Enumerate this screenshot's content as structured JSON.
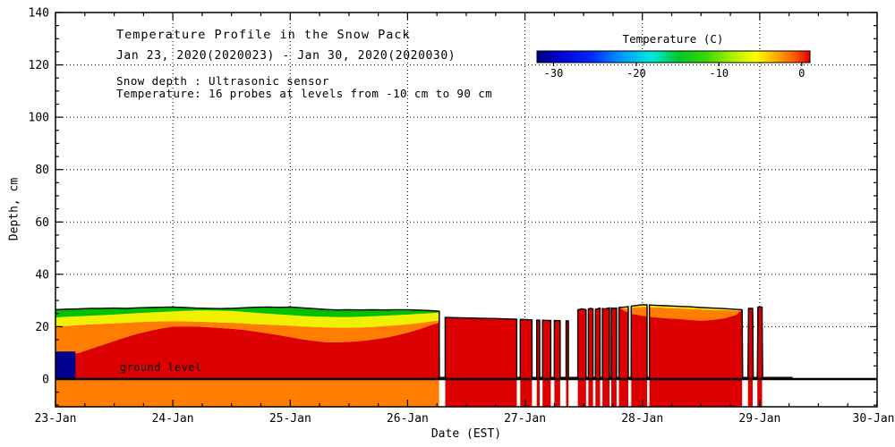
{
  "header": {
    "title": "Temperature Profile in the Snow Pack",
    "subtitle": "Jan 23, 2020(2020023) - Jan 30, 2020(2020030)",
    "note1": "Snow depth : Ultrasonic sensor",
    "note2": "Temperature: 16 probes at levels from -10 cm to 90 cm"
  },
  "annotations": {
    "ground_level": "ground level"
  },
  "axes": {
    "xlabel": "Date (EST)",
    "ylabel": "Depth, cm",
    "x_tick_labels": [
      "23-Jan",
      "24-Jan",
      "25-Jan",
      "26-Jan",
      "27-Jan",
      "28-Jan",
      "29-Jan",
      "30-Jan"
    ],
    "y_tick_values": [
      0,
      20,
      40,
      60,
      80,
      100,
      120,
      140
    ]
  },
  "colorbar": {
    "title": "Temperature (C)",
    "tick_values": [
      -30,
      -20,
      -10,
      0
    ],
    "range": [
      -32,
      1
    ],
    "stops": [
      {
        "o": 0,
        "c": "#000080"
      },
      {
        "o": 0.08,
        "c": "#0000d0"
      },
      {
        "o": 0.2,
        "c": "#0028ff"
      },
      {
        "o": 0.3,
        "c": "#0090ff"
      },
      {
        "o": 0.42,
        "c": "#00e8e0"
      },
      {
        "o": 0.52,
        "c": "#00c828"
      },
      {
        "o": 0.62,
        "c": "#38d800"
      },
      {
        "o": 0.72,
        "c": "#b0f000"
      },
      {
        "o": 0.8,
        "c": "#ffff00"
      },
      {
        "o": 0.88,
        "c": "#ffa800"
      },
      {
        "o": 0.95,
        "c": "#ff5000"
      },
      {
        "o": 1,
        "c": "#dd0000"
      }
    ]
  },
  "colors": {
    "red": "#dc0000",
    "orange": "#ff7d00",
    "yellow": "#f0f000",
    "green": "#00c000",
    "navy": "#000090",
    "line": "#000000",
    "background": "#ffffff"
  },
  "chart_data": {
    "type": "heatmap",
    "x_unit": "days since 23-Jan 00:00 EST",
    "xlim": [
      0,
      7
    ],
    "ylim": [
      -10.6,
      140
    ],
    "segment1": {
      "x": [
        0,
        0.1,
        0.2,
        0.3,
        0.4,
        0.5,
        0.6,
        0.7,
        0.8,
        0.9,
        1.0,
        1.1,
        1.2,
        1.3,
        1.4,
        1.5,
        1.6,
        1.7,
        1.8,
        1.9,
        2.0,
        2.1,
        2.2,
        2.3,
        2.4,
        2.5,
        2.6,
        2.7,
        2.8,
        2.9,
        3.0,
        3.1,
        3.2,
        3.27
      ],
      "red_top": [
        8.0,
        9.0,
        10.0,
        11.5,
        13.0,
        14.5,
        16.0,
        17.3,
        18.4,
        19.3,
        20.0,
        20.1,
        20.0,
        19.8,
        19.5,
        19.2,
        18.8,
        18.2,
        17.5,
        16.8,
        16.0,
        15.2,
        14.6,
        14.1,
        14.0,
        14.2,
        14.5,
        15.0,
        15.7,
        16.6,
        17.7,
        19.0,
        20.6,
        21.6
      ],
      "orange_top": [
        20.0,
        20.3,
        20.6,
        20.9,
        21.1,
        21.3,
        21.5,
        21.7,
        21.9,
        22.0,
        22.1,
        22.0,
        21.9,
        21.8,
        21.6,
        21.5,
        21.3,
        21.0,
        20.8,
        20.6,
        20.4,
        20.1,
        19.9,
        19.7,
        19.6,
        19.6,
        19.7,
        19.9,
        20.2,
        20.5,
        20.9,
        21.4,
        22.0,
        22.4
      ],
      "yellow_top": [
        23.5,
        23.8,
        24.0,
        24.2,
        24.4,
        24.6,
        24.9,
        25.2,
        25.4,
        25.6,
        25.8,
        26.0,
        26.2,
        26.2,
        26.1,
        26.0,
        25.7,
        25.3,
        25.0,
        24.7,
        24.4,
        24.1,
        23.9,
        23.8,
        23.7,
        23.7,
        23.8,
        24.0,
        24.2,
        24.4,
        24.6,
        24.9,
        25.2,
        25.4
      ],
      "surface": [
        26.5,
        26.7,
        26.8,
        27.0,
        27.0,
        27.1,
        27.0,
        27.2,
        27.3,
        27.4,
        27.5,
        27.3,
        27.1,
        27.0,
        26.9,
        27.0,
        27.2,
        27.4,
        27.5,
        27.4,
        27.5,
        27.2,
        26.9,
        26.6,
        26.4,
        26.5,
        26.4,
        26.5,
        26.4,
        26.5,
        26.5,
        26.3,
        26.1,
        25.9
      ],
      "subsurface_color": "orange"
    },
    "segment2": {
      "x": [
        3.32,
        3.45,
        3.6,
        3.75,
        3.9,
        4.0,
        4.1,
        4.2,
        4.3,
        4.4,
        4.44,
        4.48,
        4.52,
        4.56,
        4.6,
        4.64,
        4.68,
        4.72,
        4.76,
        4.8,
        4.85,
        4.9,
        5.0,
        5.1,
        5.2,
        5.3,
        5.4,
        5.5,
        5.6,
        5.7,
        5.8,
        5.85
      ],
      "red_top": [
        23.5,
        23.4,
        23.2,
        23.1,
        22.9,
        22.7,
        22.5,
        22.4,
        22.3,
        22.2,
        26.3,
        26.8,
        26.5,
        27.0,
        26.6,
        27.1,
        26.8,
        27.2,
        27.0,
        27.3,
        26.0,
        25.0,
        24.2,
        23.6,
        23.2,
        23.0,
        22.6,
        22.3,
        22.6,
        23.2,
        24.5,
        26.5
      ],
      "orange_top": [
        23.5,
        23.4,
        23.2,
        23.1,
        22.9,
        22.7,
        22.5,
        22.4,
        22.3,
        22.2,
        26.3,
        26.8,
        26.5,
        27.0,
        26.6,
        27.1,
        26.8,
        27.2,
        27.0,
        27.3,
        27.0,
        27.2,
        27.6,
        27.4,
        27.2,
        27.0,
        26.8,
        26.6,
        26.4,
        26.3,
        26.1,
        26.5
      ],
      "surface": [
        23.5,
        23.4,
        23.2,
        23.1,
        22.9,
        22.7,
        22.5,
        22.4,
        22.3,
        22.2,
        26.3,
        26.8,
        26.5,
        27.0,
        26.6,
        27.1,
        26.8,
        27.2,
        27.0,
        27.3,
        27.5,
        27.8,
        28.4,
        28.2,
        28.0,
        27.8,
        27.6,
        27.3,
        27.1,
        26.9,
        26.6,
        26.5
      ],
      "subsurface_color": "red"
    },
    "ice_block": {
      "x0": 0,
      "x1": 0.17,
      "y0": 0,
      "y1": 10.5
    },
    "tail_columns": [
      {
        "x0": 5.9,
        "x1": 5.94,
        "top": 27.0
      },
      {
        "x0": 5.98,
        "x1": 6.02,
        "top": 27.5
      }
    ],
    "gaps": [
      [
        3.27,
        3.32
      ],
      [
        3.93,
        3.96
      ],
      [
        4.06,
        4.1
      ],
      [
        4.125,
        4.15
      ],
      [
        4.22,
        4.25
      ],
      [
        4.3,
        4.35
      ],
      [
        4.37,
        4.45
      ],
      [
        4.52,
        4.54
      ],
      [
        4.58,
        4.6
      ],
      [
        4.64,
        4.66
      ],
      [
        4.72,
        4.735
      ],
      [
        4.78,
        4.8
      ],
      [
        4.88,
        4.905
      ],
      [
        5.04,
        5.06
      ]
    ],
    "surface_tail": [
      [
        5.85,
        26.5
      ],
      [
        5.855,
        0.6
      ],
      [
        5.9,
        0.6
      ],
      [
        5.905,
        27.0
      ],
      [
        5.94,
        27.0
      ],
      [
        5.945,
        0.6
      ],
      [
        5.98,
        0.6
      ],
      [
        5.985,
        27.5
      ],
      [
        6.02,
        27.5
      ],
      [
        6.025,
        0.6
      ],
      [
        6.28,
        0.6
      ]
    ],
    "ground_line_y": 0
  }
}
